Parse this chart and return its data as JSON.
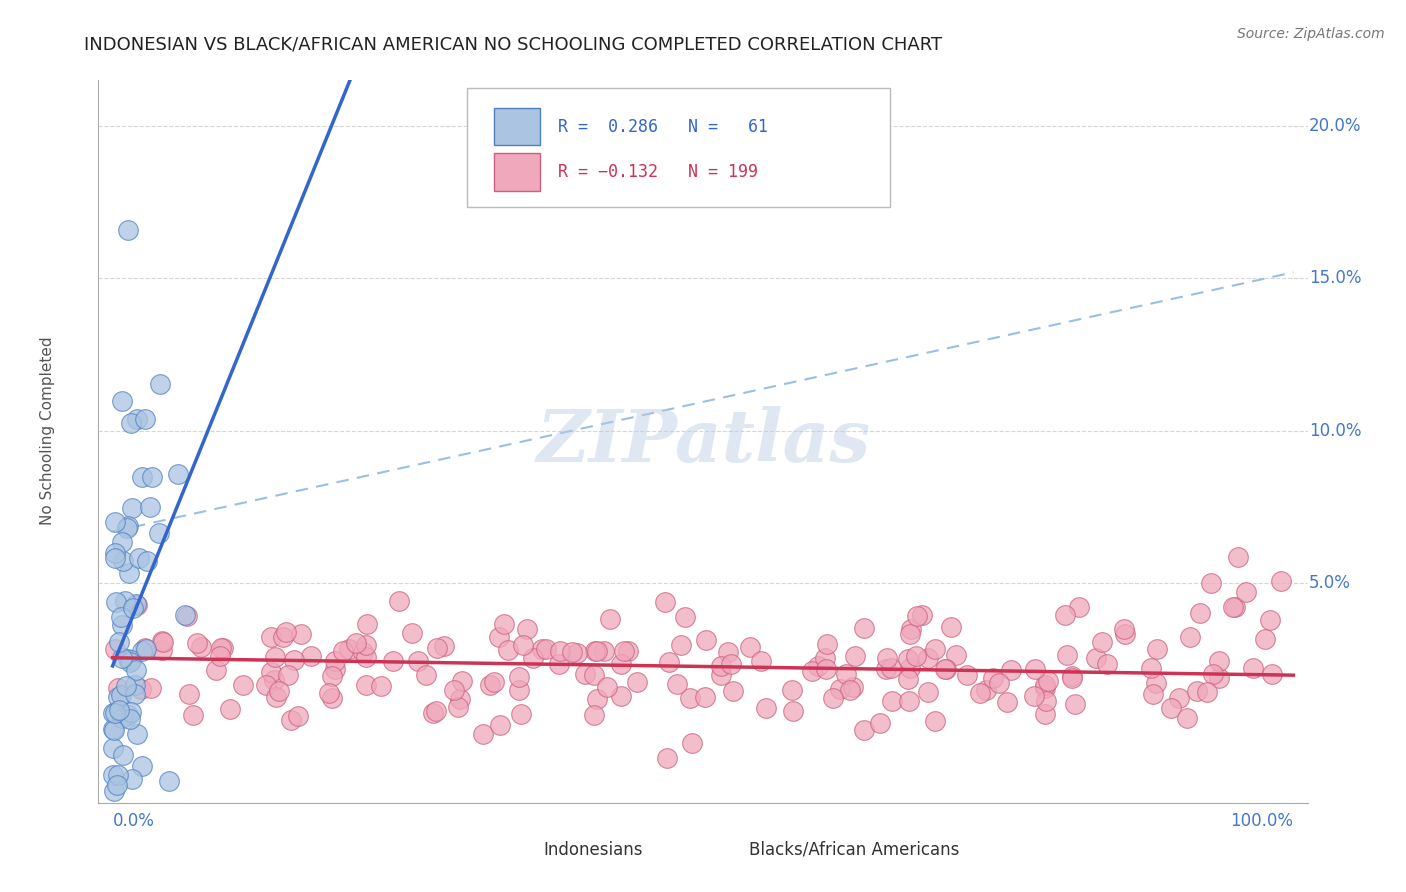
{
  "title": "INDONESIAN VS BLACK/AFRICAN AMERICAN NO SCHOOLING COMPLETED CORRELATION CHART",
  "source": "Source: ZipAtlas.com",
  "ylabel": "No Schooling Completed",
  "watermark": "ZIPatlas",
  "indonesian_color": "#aac4e2",
  "indonesian_edge_color": "#5080c0",
  "indonesian_line_color": "#3366cc",
  "black_color": "#f0a8bc",
  "black_edge_color": "#cc6080",
  "black_line_color": "#cc3355",
  "dash_line_color": "#90b8e0",
  "background_color": "#ffffff",
  "grid_color": "#cccccc",
  "title_color": "#222222",
  "label_color": "#4477cc",
  "indonesian_R": 0.286,
  "indonesian_N": 61,
  "black_R": -0.132,
  "black_N": 199
}
